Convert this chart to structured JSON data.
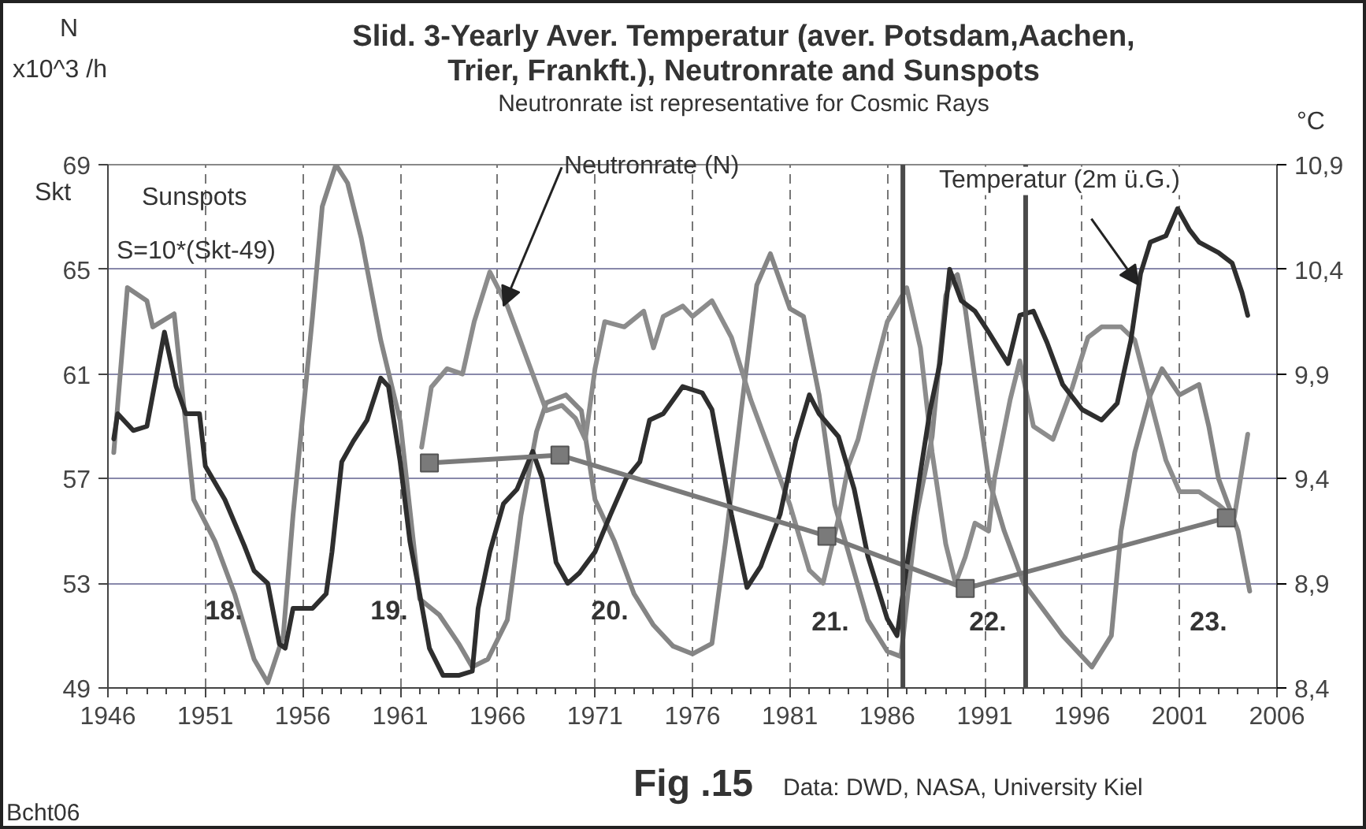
{
  "chart_data": {
    "type": "line",
    "title": "Slid. 3-Yearly Aver. Temperatur (aver. Potsdam,Aachen, Trier, Frankft.), Neutronrate and Sunspots",
    "subtitle": "Neutronrate ist representative for Cosmic Rays",
    "ylabel": "N\nx10^3 /h",
    "y2label": "°C",
    "xlim": [
      1946,
      2006
    ],
    "xticks": [
      1946,
      1951,
      1956,
      1961,
      1966,
      1971,
      1976,
      1981,
      1986,
      1991,
      1996,
      2001,
      2006
    ],
    "ylim": [
      49,
      69
    ],
    "yticks": [
      49,
      53,
      57,
      61,
      65,
      69
    ],
    "y2lim": [
      8.4,
      10.9
    ],
    "y2ticks": [
      {
        "value": 8.4,
        "label": "8,4"
      },
      {
        "value": 8.9,
        "label": "8,9"
      },
      {
        "value": 9.4,
        "label": "9,4"
      },
      {
        "value": 9.9,
        "label": "9,9"
      },
      {
        "value": 10.4,
        "label": "10,4"
      },
      {
        "value": 10.9,
        "label": "10,9"
      }
    ],
    "grid": true,
    "line_style": "solid",
    "series": [
      {
        "color": "#858585",
        "x": [
          1946.3,
          1947,
          1948,
          1948.3,
          1949.4,
          1950.4,
          1951.5,
          1952.5,
          1953.5,
          1954.2,
          1955,
          1955.5,
          1956.5,
          1957,
          1957.7,
          1958.3,
          1959,
          1960,
          1961,
          1962,
          1963,
          1964,
          1964.7,
          1965.5,
          1966.5,
          1967.2,
          1968,
          1968.5,
          1969.5,
          1970.3,
          1971,
          1972,
          1973,
          1974,
          1975,
          1976,
          1977,
          1977.7,
          1978.5,
          1979.3,
          1980,
          1981,
          1981.7,
          1982.5,
          1983.3,
          1984,
          1985,
          1986,
          1986.7,
          1987.5,
          1988.3,
          1989,
          1989.3,
          1989.6,
          1990,
          1990.5,
          1991.2,
          1992,
          1993,
          1994,
          1995,
          1996.5,
          1997.5,
          1998,
          1998.7,
          1999.5,
          2000.1,
          2001,
          2002,
          2002.5,
          2003,
          2004,
          2004.6
        ],
        "values": [
          58,
          64.3,
          63.8,
          62.8,
          63.3,
          56.2,
          54.6,
          52.6,
          50.1,
          49.2,
          51,
          55.6,
          63.2,
          67.4,
          69,
          68.3,
          66.2,
          62.3,
          59.2,
          52.4,
          51.8,
          50.7,
          49.8,
          50.1,
          51.6,
          55.6,
          58.8,
          59.9,
          60.2,
          59.6,
          56.2,
          54.6,
          52.6,
          51.4,
          50.6,
          50.3,
          50.7,
          54.6,
          59.6,
          64.4,
          65.6,
          63.5,
          63.2,
          60.2,
          56,
          54.2,
          51.6,
          50.4,
          50.2,
          55.6,
          58.6,
          64,
          64.6,
          64.8,
          63.5,
          60.8,
          57,
          55,
          53,
          52,
          51,
          49.8,
          51,
          55,
          58,
          60.2,
          61.2,
          60.2,
          60.6,
          59,
          57,
          55,
          52.7
        ]
      },
      {
        "color": "#8c8c8c",
        "x": [
          1962.1,
          1962.6,
          1963.4,
          1964.2,
          1964.8,
          1965.6,
          1966.5,
          1967.5,
          1968.5,
          1969.3,
          1970,
          1970.5,
          1971,
          1971.5,
          1972.5,
          1973.5,
          1974,
          1974.5,
          1975.5,
          1976,
          1977,
          1978,
          1979,
          1980,
          1981,
          1982,
          1982.7,
          1983.5,
          1984,
          1984.5,
          1985.3,
          1986,
          1987,
          1987.7,
          1988.3,
          1989,
          1989.5,
          1990,
          1990.5,
          1991.2,
          1991.5,
          1992.3,
          1992.8,
          1993.5,
          1994.5,
          1995.5,
          1996.3,
          1997,
          1998,
          1998.7,
          1999.5,
          2000.3,
          2001,
          2002,
          2003,
          2003.8,
          2004.5
        ],
        "values": [
          58.2,
          60.5,
          61.2,
          61,
          63,
          64.9,
          63.6,
          61.6,
          59.6,
          59.8,
          59.3,
          58.5,
          61.2,
          63,
          62.8,
          63.4,
          62,
          63.2,
          63.6,
          63.2,
          63.8,
          62.4,
          60,
          58,
          56,
          53.5,
          53,
          55.5,
          57.5,
          58.5,
          61,
          63,
          64.3,
          62,
          58,
          54.5,
          53,
          54,
          55.3,
          55,
          57,
          60,
          61.5,
          59,
          58.5,
          60.5,
          62.4,
          62.8,
          62.8,
          62.3,
          60,
          57.7,
          56.5,
          56.5,
          56,
          55.5,
          58.7
        ]
      },
      {
        "color": "#2e2e2e",
        "axis": "y2",
        "x": [
          1946.3,
          1946.5,
          1947.3,
          1948,
          1948.5,
          1948.9,
          1949.5,
          1950,
          1950.7,
          1951,
          1952,
          1953,
          1953.5,
          1954.2,
          1954.8,
          1955.1,
          1955.5,
          1956.5,
          1957.2,
          1957.5,
          1958,
          1958.6,
          1959.3,
          1960,
          1960.4,
          1961,
          1961.5,
          1962,
          1962.5,
          1963.2,
          1964,
          1964.7,
          1965,
          1965.6,
          1966.3,
          1967,
          1967.8,
          1968.3,
          1969,
          1969.6,
          1970.2,
          1971,
          1971.8,
          1972.6,
          1973.3,
          1973.8,
          1974.5,
          1975.5,
          1976.5,
          1977,
          1978,
          1978.8,
          1979.5,
          1980.5,
          1981.3,
          1982,
          1982.5,
          1983.5,
          1984.3,
          1985,
          1986,
          1986.5,
          1987,
          1987.7,
          1988.2,
          1988.7,
          1989.2,
          1989.8,
          1990.5,
          1991.2,
          1992.2,
          1992.8,
          1993.5,
          1994.2,
          1995,
          1996,
          1997,
          1997.8,
          1998.5,
          1999,
          1999.5,
          2000.3,
          2000.9,
          2001.5,
          2002,
          2003,
          2003.7,
          2004.2,
          2004.5
        ],
        "values": [
          9.59,
          9.71,
          9.63,
          9.65,
          9.9,
          10.1,
          9.84,
          9.71,
          9.71,
          9.46,
          9.3,
          9.08,
          8.96,
          8.9,
          8.61,
          8.59,
          8.78,
          8.78,
          8.85,
          9.05,
          9.48,
          9.58,
          9.68,
          9.88,
          9.84,
          9.48,
          9.1,
          8.85,
          8.59,
          8.46,
          8.46,
          8.48,
          8.78,
          9.05,
          9.28,
          9.35,
          9.53,
          9.4,
          9.0,
          8.9,
          8.95,
          9.05,
          9.23,
          9.4,
          9.48,
          9.68,
          9.71,
          9.84,
          9.81,
          9.73,
          9.23,
          8.88,
          8.98,
          9.23,
          9.58,
          9.8,
          9.71,
          9.6,
          9.35,
          9.03,
          8.73,
          8.65,
          8.98,
          9.43,
          9.73,
          9.95,
          10.4,
          10.25,
          10.2,
          10.1,
          9.95,
          10.18,
          10.2,
          10.05,
          9.85,
          9.73,
          9.68,
          9.76,
          10.06,
          10.38,
          10.53,
          10.56,
          10.69,
          10.59,
          10.53,
          10.48,
          10.43,
          10.29,
          10.18
        ]
      },
      {
        "color": "#7a7a7a",
        "marker": "square",
        "x": [
          1962.5,
          1969.2,
          1982.9,
          1990,
          2003.4
        ],
        "values": [
          57.6,
          57.9,
          54.8,
          52.8,
          55.5
        ]
      }
    ],
    "ref_lines": [
      {
        "axis": "x",
        "value": 1986.8,
        "color": "#4a4a4a"
      },
      {
        "axis": "x",
        "value": 1993.1,
        "color": "#4a4a4a"
      }
    ],
    "annotations": [
      {
        "text": "Neutronrate (N)",
        "x": 1966.3,
        "y": 63.6
      },
      {
        "text": "Temperatur (2m ü.G.)",
        "x": 1998.9,
        "y": 64.4
      },
      "18.",
      "19.",
      "20.",
      "21.",
      "22.",
      "23.",
      "Skt",
      "Sunspots",
      "S=10*(Skt-49)",
      "Fig .15",
      "Data: DWD, NASA, University Kiel",
      "Bcht06"
    ]
  }
}
